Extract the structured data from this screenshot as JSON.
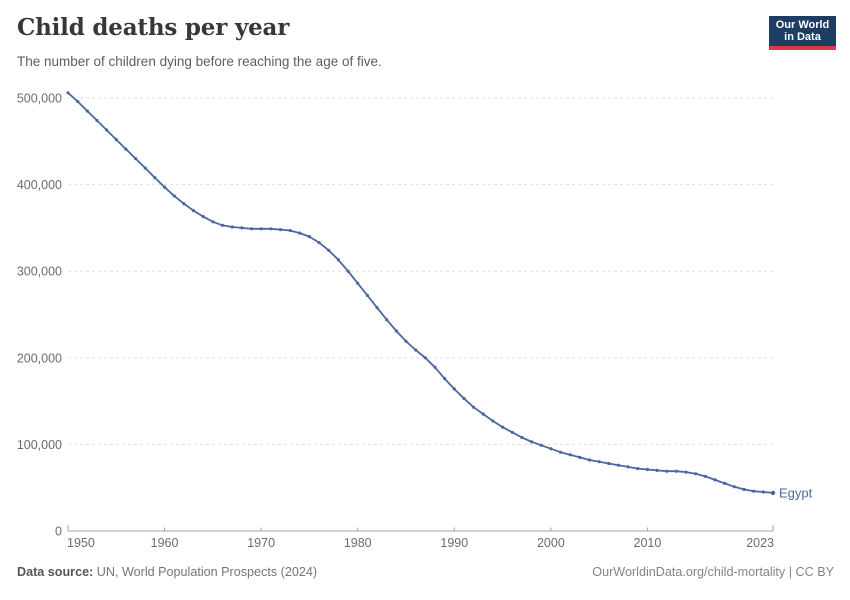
{
  "header": {
    "title": "Child deaths per year",
    "subtitle": "The number of children dying before reaching the age of five."
  },
  "logo": {
    "line1": "Our World",
    "line2": "in Data",
    "bg_color": "#1d3d63",
    "accent_color": "#d93a4a"
  },
  "chart_data": {
    "type": "line",
    "title": "Child deaths per year",
    "subtitle": "The number of children dying before reaching the age of five.",
    "xlabel": "",
    "ylabel": "",
    "x": [
      1950,
      1951,
      1952,
      1953,
      1954,
      1955,
      1956,
      1957,
      1958,
      1959,
      1960,
      1961,
      1962,
      1963,
      1964,
      1965,
      1966,
      1967,
      1968,
      1969,
      1970,
      1971,
      1972,
      1973,
      1974,
      1975,
      1976,
      1977,
      1978,
      1979,
      1980,
      1981,
      1982,
      1983,
      1984,
      1985,
      1986,
      1987,
      1988,
      1989,
      1990,
      1991,
      1992,
      1993,
      1994,
      1995,
      1996,
      1997,
      1998,
      1999,
      2000,
      2001,
      2002,
      2003,
      2004,
      2005,
      2006,
      2007,
      2008,
      2009,
      2010,
      2011,
      2012,
      2013,
      2014,
      2015,
      2016,
      2017,
      2018,
      2019,
      2020,
      2021,
      2022,
      2023
    ],
    "series": [
      {
        "name": "Egypt",
        "values": [
          506000,
          496000,
          485000,
          474000,
          463000,
          452000,
          441000,
          430000,
          419000,
          408000,
          397000,
          387000,
          378000,
          370000,
          363000,
          357000,
          353000,
          351000,
          350000,
          349000,
          349000,
          349000,
          348000,
          347000,
          344000,
          340000,
          333000,
          324000,
          313000,
          300000,
          286000,
          272000,
          258000,
          244000,
          231000,
          219000,
          209000,
          200000,
          189000,
          176000,
          164000,
          153000,
          143000,
          135000,
          127000,
          120000,
          114000,
          108000,
          103000,
          99000,
          95000,
          91000,
          88000,
          85000,
          82000,
          80000,
          78000,
          76000,
          74000,
          72000,
          71000,
          70000,
          69000,
          69000,
          68000,
          66000,
          63000,
          59000,
          55000,
          51000,
          48000,
          46000,
          45000,
          44000
        ]
      }
    ],
    "xlim": [
      1950,
      2023
    ],
    "ylim": [
      0,
      500000
    ],
    "yticks": [
      {
        "value": 0,
        "label": "0"
      },
      {
        "value": 100000,
        "label": "100,000"
      },
      {
        "value": 200000,
        "label": "200,000"
      },
      {
        "value": 300000,
        "label": "300,000"
      },
      {
        "value": 400000,
        "label": "400,000"
      },
      {
        "value": 500000,
        "label": "500,000"
      }
    ],
    "xticks": [
      1950,
      1960,
      1970,
      1980,
      1990,
      2000,
      2010,
      2023
    ],
    "grid": true,
    "legend": "end-of-line-label",
    "entity_label": "Egypt",
    "colors": {
      "line": "#4b67a1",
      "grid": "#e1e1e1",
      "axis": "#a3a3a3",
      "tick_label": "#6c6c6c",
      "entity_label": "#4b67a1"
    }
  },
  "footer": {
    "source_label": "Data source:",
    "source_value": " UN, World Population Prospects (2024)",
    "rights": "OurWorldinData.org/child-mortality | CC BY"
  }
}
